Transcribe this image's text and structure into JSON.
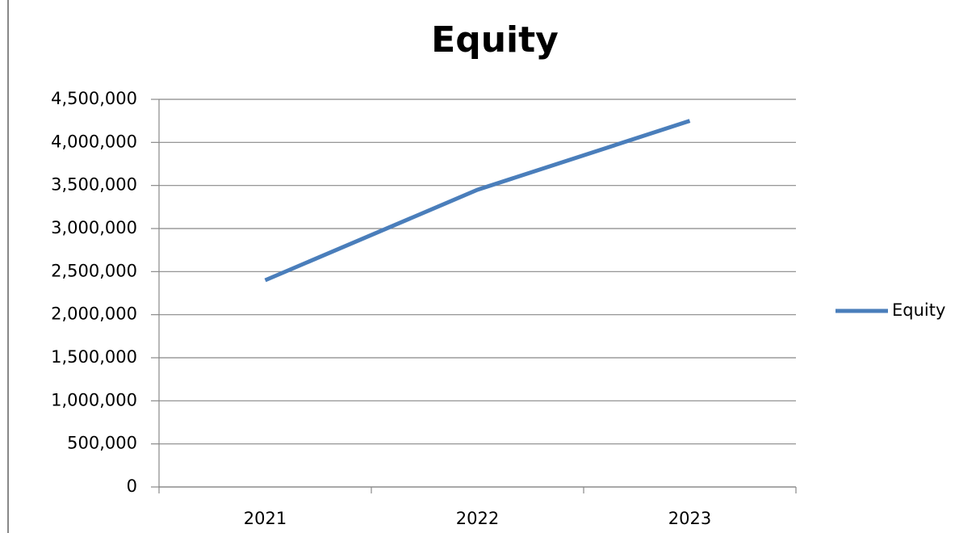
{
  "chart_data": {
    "type": "line",
    "title": "Equity",
    "categories": [
      "2021",
      "2022",
      "2023"
    ],
    "series": [
      {
        "name": "Equity",
        "color": "#4a7ebb",
        "values": [
          2400000,
          3450000,
          4250000
        ]
      }
    ],
    "ylim": [
      0,
      4500000
    ],
    "yticks": [
      0,
      {
        "value": 500000,
        "label": "500,000"
      },
      {
        "value": 1000000,
        "label": "1,000,000"
      },
      {
        "value": 1500000,
        "label": "1,500,000"
      },
      {
        "value": 2000000,
        "label": "2,000,000"
      },
      {
        "value": 2500000,
        "label": "2,500,000"
      },
      {
        "value": 3000000,
        "label": "3,000,000"
      },
      {
        "value": 3500000,
        "label": "3,500,000"
      },
      {
        "value": 4000000,
        "label": "4,000,000"
      },
      {
        "value": 4500000,
        "label": "4,500,000"
      }
    ],
    "grid": true,
    "legend": "right"
  }
}
